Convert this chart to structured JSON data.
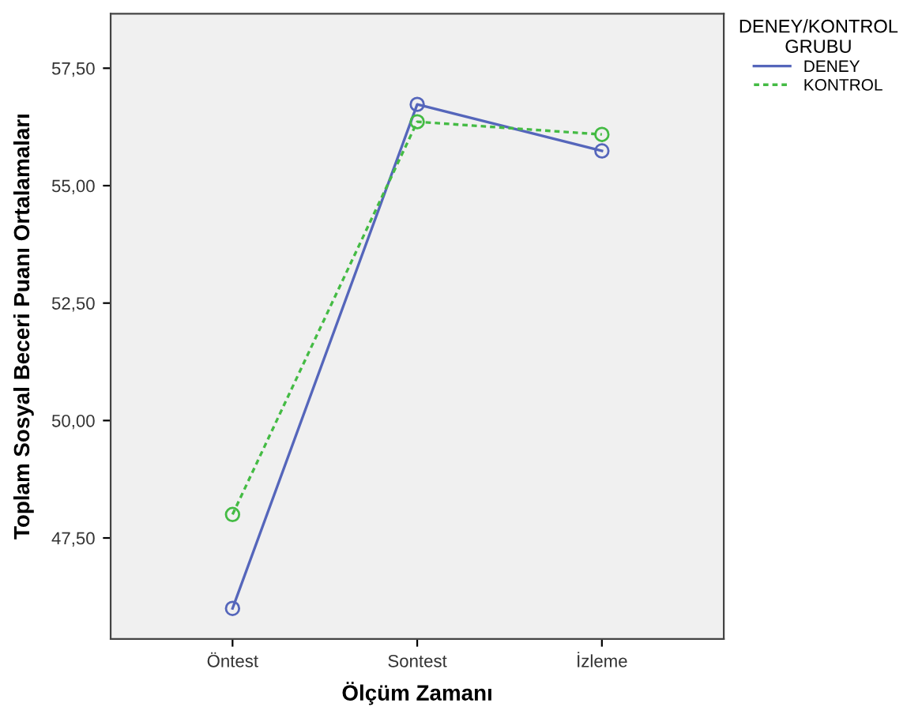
{
  "chart_data": {
    "type": "line",
    "xlabel": "Ölçüm Zamanı",
    "ylabel": "Toplam Sosyal Beceri Puanı Ortalamaları",
    "legend_title": "DENEY/KONTROL\nGRUBU",
    "categories": [
      "Öntest",
      "Sontest",
      "İzleme"
    ],
    "series": [
      {
        "name": "DENEY",
        "color": "#5566bb",
        "values": [
          46.0,
          56.73,
          55.74
        ],
        "line_style": "solid"
      },
      {
        "name": "KONTROL",
        "color": "#44bb44",
        "values": [
          48.0,
          56.36,
          56.09
        ],
        "line_style": "dashed"
      }
    ],
    "ylim": [
      45.35,
      58.66
    ],
    "yticks": [
      {
        "value": 47.5,
        "label": "47,50"
      },
      {
        "value": 50,
        "label": "50,00"
      },
      {
        "value": 52.5,
        "label": "52,50"
      },
      {
        "value": 55,
        "label": "55,00"
      },
      {
        "value": 57.5,
        "label": "57,50"
      }
    ],
    "marker": "circle",
    "grid": false,
    "legend": "top right"
  }
}
